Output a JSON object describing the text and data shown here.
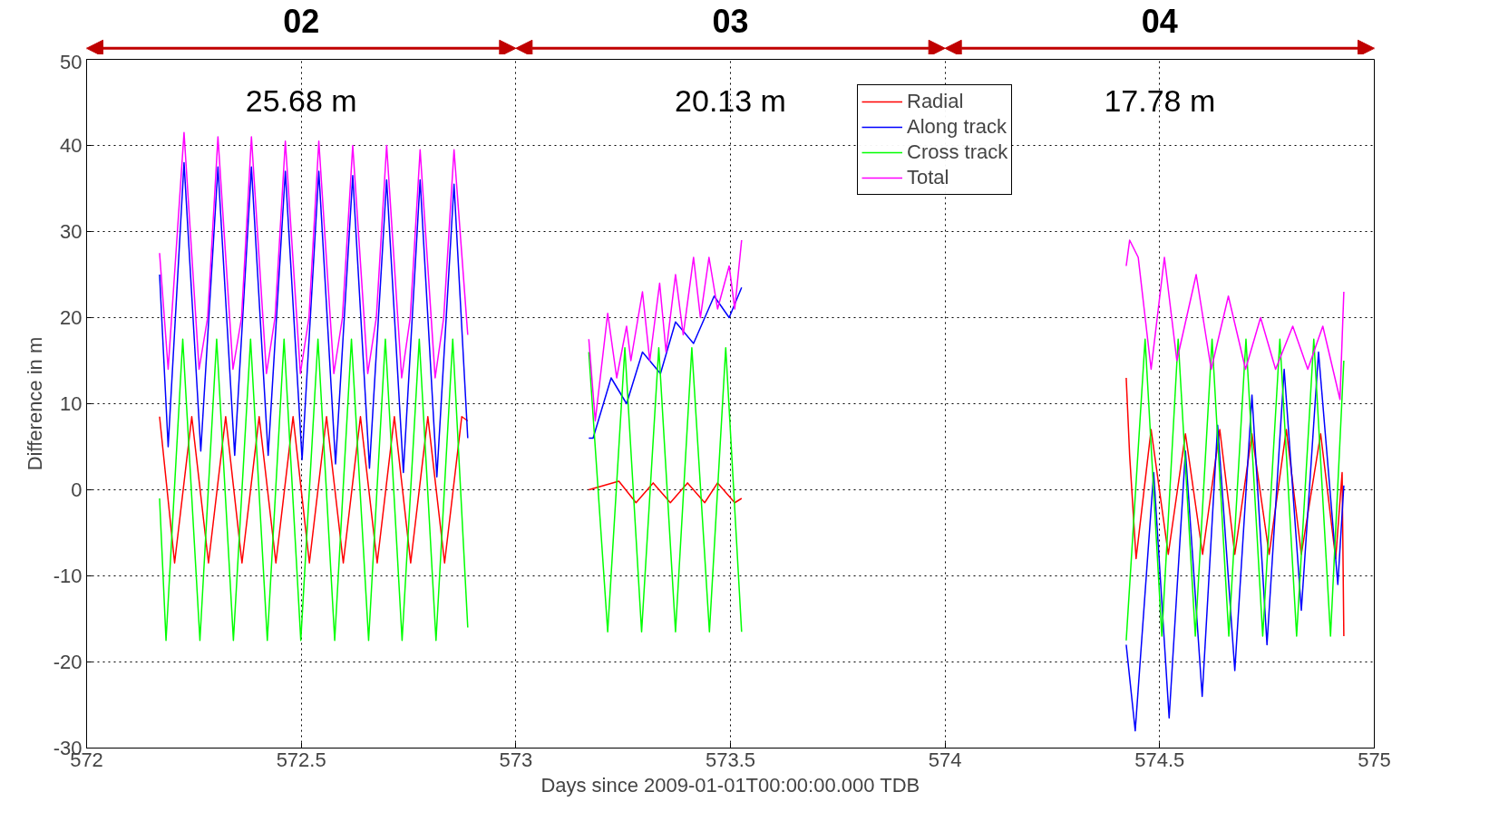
{
  "chart_data": {
    "type": "line",
    "xlabel": "Days since 2009-01-01T00:00:00.000 TDB",
    "ylabel": "Difference in m",
    "xlim": [
      572,
      575
    ],
    "ylim": [
      -30,
      50
    ],
    "xticks": [
      572,
      572.5,
      573,
      573.5,
      574,
      574.5,
      575
    ],
    "yticks": [
      -30,
      -20,
      -10,
      0,
      10,
      20,
      30,
      40,
      50
    ],
    "grid": true,
    "legend": "top",
    "marker": "none",
    "line_style": "solid",
    "annotations": [
      "02",
      "03",
      "04",
      "25.68 m",
      "20.13 m",
      "17.78 m"
    ],
    "series": [
      {
        "name": "Radial",
        "color": "#ff0000",
        "x": [
          572.17,
          572.205,
          572.245,
          572.284,
          572.324,
          572.362,
          572.402,
          572.441,
          572.481,
          572.519,
          572.559,
          572.598,
          572.638,
          572.677,
          572.717,
          572.755,
          572.795,
          572.834,
          572.874,
          572.888,
          573.0,
          573.17,
          573.24,
          573.28,
          573.32,
          573.36,
          573.4,
          573.44,
          573.47,
          573.51,
          573.526,
          574.0,
          574.422,
          574.43,
          574.445,
          574.48,
          574.52,
          574.56,
          574.6,
          574.64,
          574.675,
          574.715,
          574.755,
          574.795,
          574.83,
          574.875,
          574.91,
          574.925,
          574.929
        ],
        "values": [
          8.5,
          -8.5,
          8.5,
          -8.5,
          8.5,
          -8.5,
          8.5,
          -8.5,
          8.5,
          -8.5,
          8.5,
          -8.5,
          8.5,
          -8.5,
          8.5,
          -8.5,
          8.5,
          -8.5,
          8.5,
          8,
          null,
          0,
          1,
          -1.5,
          0.8,
          -1.5,
          0.8,
          -1.5,
          0.8,
          -1.5,
          -1,
          null,
          13,
          4,
          -8,
          7,
          -7.5,
          6.5,
          -7.5,
          7,
          -7.5,
          6.5,
          -7.5,
          7,
          -7.5,
          6.5,
          -8,
          2,
          -17
        ]
      },
      {
        "name": "Along track",
        "color": "#0000ff",
        "x": [
          572.17,
          572.19,
          572.227,
          572.266,
          572.306,
          572.345,
          572.384,
          572.423,
          572.463,
          572.502,
          572.541,
          572.58,
          572.62,
          572.659,
          572.699,
          572.738,
          572.777,
          572.816,
          572.856,
          572.888,
          573.0,
          573.17,
          573.18,
          573.222,
          573.258,
          573.295,
          573.337,
          573.372,
          573.414,
          573.462,
          573.497,
          573.526,
          574.0,
          574.422,
          574.443,
          574.486,
          574.522,
          574.56,
          574.599,
          574.635,
          574.675,
          574.715,
          574.75,
          574.79,
          574.83,
          574.87,
          574.915,
          574.929
        ],
        "values": [
          25,
          5,
          38,
          4.5,
          37.5,
          4,
          37.5,
          4,
          37,
          3.5,
          37,
          3,
          36.5,
          2.5,
          36,
          2,
          36,
          1.5,
          35.5,
          6,
          null,
          6,
          6,
          13,
          10,
          16,
          13.5,
          19.5,
          17,
          22.5,
          20,
          23.5,
          null,
          -18,
          -28,
          2,
          -26.5,
          4.5,
          -24,
          7.5,
          -21,
          11,
          -18,
          14,
          -14,
          16,
          -11,
          0.5
        ]
      },
      {
        "name": "Cross track",
        "color": "#00ff00",
        "x": [
          572.17,
          572.185,
          572.224,
          572.264,
          572.303,
          572.342,
          572.382,
          572.421,
          572.46,
          572.499,
          572.539,
          572.578,
          572.617,
          572.657,
          572.696,
          572.735,
          572.775,
          572.814,
          572.853,
          572.888,
          573.0,
          573.17,
          573.214,
          573.254,
          573.293,
          573.333,
          573.372,
          573.41,
          573.451,
          573.489,
          573.526,
          574.0,
          574.422,
          574.466,
          574.505,
          574.543,
          574.583,
          574.622,
          574.661,
          574.701,
          574.74,
          574.78,
          574.819,
          574.859,
          574.898,
          574.929
        ],
        "values": [
          -1,
          -17.5,
          17.5,
          -17.5,
          17.5,
          -17.5,
          17.5,
          -17.5,
          17.5,
          -17.5,
          17.5,
          -17.5,
          17.5,
          -17.5,
          17.5,
          -17.5,
          17.5,
          -17.5,
          17.5,
          -16,
          null,
          16,
          -16.5,
          16.5,
          -16.5,
          16.5,
          -16.5,
          16.5,
          -16.5,
          16.5,
          -16.5,
          null,
          -17.5,
          17.5,
          -17,
          17.5,
          -17,
          17.5,
          -17,
          17.5,
          -17,
          17.5,
          -17,
          17.5,
          -17,
          15
        ]
      },
      {
        "name": "Total",
        "color": "#ff00ff",
        "x": [
          572.17,
          572.19,
          572.227,
          572.262,
          572.282,
          572.306,
          572.341,
          572.361,
          572.384,
          572.419,
          572.439,
          572.463,
          572.498,
          572.518,
          572.541,
          572.576,
          572.596,
          572.62,
          572.655,
          572.675,
          572.699,
          572.734,
          572.754,
          572.777,
          572.812,
          572.832,
          572.856,
          572.888,
          573.0,
          573.17,
          573.185,
          573.214,
          573.235,
          573.258,
          573.268,
          573.295,
          573.312,
          573.335,
          573.35,
          573.372,
          573.39,
          573.414,
          573.43,
          573.45,
          573.47,
          573.497,
          573.51,
          573.526,
          574.0,
          574.422,
          574.43,
          574.45,
          574.48,
          574.511,
          574.54,
          574.585,
          574.62,
          574.66,
          574.7,
          574.735,
          574.77,
          574.81,
          574.845,
          574.88,
          574.92,
          574.929
        ],
        "values": [
          27.5,
          14,
          41.5,
          14,
          20,
          41,
          14,
          20,
          41,
          13.5,
          20,
          40.5,
          13.5,
          20,
          40.5,
          13.5,
          20,
          40,
          13.5,
          20,
          40,
          13,
          20,
          39.5,
          13,
          20,
          39.5,
          18,
          null,
          17.5,
          8,
          20.5,
          13,
          19,
          15,
          23,
          15,
          24,
          16,
          25,
          18,
          27,
          20,
          27,
          21,
          26,
          21,
          29,
          null,
          26,
          29,
          27,
          14,
          27,
          15,
          25,
          14,
          22.5,
          14,
          20,
          14,
          19,
          14,
          19,
          10.5,
          23
        ]
      }
    ]
  }
}
